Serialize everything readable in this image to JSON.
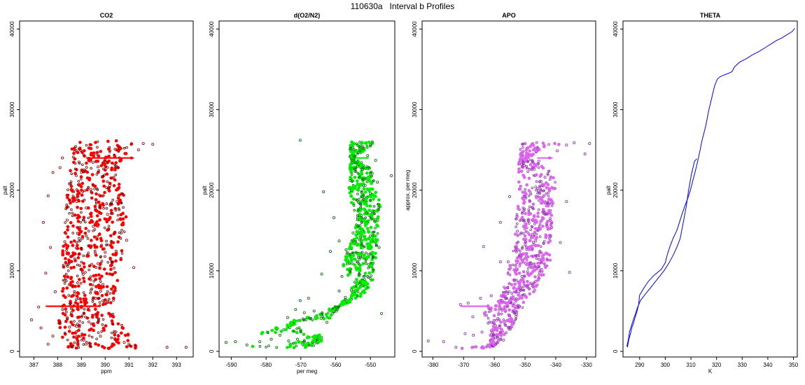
{
  "figure": {
    "title": "110630a   Interval b Profiles"
  },
  "chart_data": [
    {
      "type": "scatter",
      "title": "CO2",
      "xlabel": "ppm",
      "ylabel": "palt",
      "xlim": [
        386.4,
        393.7
      ],
      "ylim": [
        -700,
        41000
      ],
      "xticks": [
        387,
        388,
        389,
        390,
        391,
        392,
        393
      ],
      "yticks": [
        0,
        10000,
        20000,
        30000,
        40000
      ],
      "color": "#ff0000",
      "grid": false,
      "points": [
        [
          386.9,
          3900
        ],
        [
          387.3,
          2900
        ],
        [
          387.2,
          5500
        ],
        [
          388.2,
          5600
        ],
        [
          388.6,
          5500
        ],
        [
          389.0,
          5600
        ],
        [
          389.3,
          5500
        ],
        [
          388.5,
          3000
        ],
        [
          388.1,
          3600
        ],
        [
          389.1,
          1400
        ],
        [
          389.8,
          1900
        ],
        [
          390.4,
          1600
        ],
        [
          390.8,
          1100
        ],
        [
          391.0,
          900
        ],
        [
          391.3,
          600
        ],
        [
          392.6,
          500
        ],
        [
          393.4,
          500
        ],
        [
          388.4,
          4200
        ],
        [
          389.6,
          4600
        ],
        [
          390.1,
          6200
        ],
        [
          388.7,
          7100
        ],
        [
          389.4,
          7600
        ],
        [
          389.9,
          8300
        ],
        [
          388.3,
          8800
        ],
        [
          390.3,
          9500
        ],
        [
          389.0,
          10200
        ],
        [
          389.7,
          10900
        ],
        [
          388.6,
          11800
        ],
        [
          390.0,
          12300
        ],
        [
          389.3,
          13100
        ],
        [
          388.9,
          14000
        ],
        [
          390.4,
          14700
        ],
        [
          389.5,
          15500
        ],
        [
          388.4,
          16300
        ],
        [
          390.1,
          17000
        ],
        [
          389.2,
          17800
        ],
        [
          388.8,
          18600
        ],
        [
          389.9,
          19300
        ],
        [
          389.4,
          20100
        ],
        [
          388.5,
          20800
        ],
        [
          390.3,
          21500
        ],
        [
          389.0,
          22200
        ],
        [
          389.7,
          22900
        ],
        [
          390.0,
          23800
        ],
        [
          390.6,
          24000
        ],
        [
          391.1,
          24000
        ],
        [
          391.6,
          25800
        ],
        [
          391.4,
          25000
        ],
        [
          392.0,
          25700
        ],
        [
          390.6,
          25400
        ],
        [
          388.2,
          24000
        ],
        [
          387.8,
          22200
        ],
        [
          387.6,
          19300
        ],
        [
          387.4,
          16000
        ],
        [
          387.7,
          12900
        ],
        [
          387.5,
          9700
        ],
        [
          387.9,
          7400
        ],
        [
          391.2,
          10400
        ],
        [
          390.9,
          13800
        ],
        [
          390.5,
          18600
        ],
        [
          388.1,
          22800
        ],
        [
          388.9,
          23500
        ],
        [
          390.2,
          20600
        ],
        [
          388.3,
          13600
        ],
        [
          389.6,
          6600
        ],
        [
          388.8,
          3100
        ],
        [
          387.8,
          1900
        ],
        [
          387.6,
          900
        ],
        [
          389.2,
          900
        ]
      ],
      "band": [
        [
          388.5,
          0
        ],
        [
          388.0,
          3000
        ],
        [
          388.2,
          6000
        ],
        [
          388.2,
          12000
        ],
        [
          388.4,
          20000
        ],
        [
          388.6,
          24000
        ],
        [
          391.2,
          26000
        ],
        [
          390.6,
          23000
        ],
        [
          390.9,
          16000
        ],
        [
          390.6,
          10000
        ],
        [
          390.3,
          5000
        ],
        [
          391.3,
          800
        ]
      ]
    },
    {
      "type": "scatter",
      "title": "d(O2/N2)",
      "xlabel": "per meg",
      "ylabel": "palt",
      "xlim": [
        -593.5,
        -543
      ],
      "ylim": [
        -700,
        41000
      ],
      "xticks": [
        -590,
        -580,
        -570,
        -560,
        -550
      ],
      "yticks": [
        0,
        10000,
        20000,
        30000,
        40000
      ],
      "color": "#00ee00",
      "grid": false,
      "points": [
        [
          -591.5,
          1100
        ],
        [
          -588.8,
          1200
        ],
        [
          -585.5,
          800
        ],
        [
          -581.8,
          1200
        ],
        [
          -578.5,
          1500
        ],
        [
          -576.0,
          2000
        ],
        [
          -573.5,
          1300
        ],
        [
          -571.0,
          1500
        ],
        [
          -570.0,
          2400
        ],
        [
          -573.8,
          4200
        ],
        [
          -571.5,
          5200
        ],
        [
          -570.2,
          6300
        ],
        [
          -567.8,
          6600
        ],
        [
          -566.2,
          5000
        ],
        [
          -564.2,
          4100
        ],
        [
          -562.5,
          3600
        ],
        [
          -559.8,
          5000
        ],
        [
          -557.2,
          6700
        ],
        [
          -559.0,
          7500
        ],
        [
          -555.5,
          7600
        ],
        [
          -553.0,
          8300
        ],
        [
          -558.2,
          9300
        ],
        [
          -556.0,
          10000
        ],
        [
          -553.8,
          11100
        ],
        [
          -557.0,
          12600
        ],
        [
          -559.0,
          13700
        ],
        [
          -555.0,
          14700
        ],
        [
          -552.5,
          16000
        ],
        [
          -551.0,
          17200
        ],
        [
          -552.8,
          18300
        ],
        [
          -550.0,
          19600
        ],
        [
          -551.5,
          20600
        ],
        [
          -548.0,
          21000
        ],
        [
          -549.5,
          22100
        ],
        [
          -551.0,
          22900
        ],
        [
          -548.5,
          23700
        ],
        [
          -550.8,
          24300
        ],
        [
          -553.0,
          24900
        ],
        [
          -550.0,
          25600
        ],
        [
          -549.5,
          26000
        ],
        [
          -570.2,
          26200
        ],
        [
          -563.5,
          19800
        ],
        [
          -560.5,
          16600
        ],
        [
          -561.5,
          12400
        ],
        [
          -564.0,
          9600
        ],
        [
          -546.8,
          4700
        ],
        [
          -547.5,
          12900
        ],
        [
          -544.0,
          21800
        ],
        [
          -569.0,
          4800
        ]
      ],
      "band": [
        [
          -584,
          700
        ],
        [
          -575,
          700
        ],
        [
          -568,
          1500
        ],
        [
          -572,
          3800
        ],
        [
          -565,
          3900
        ],
        [
          -561,
          4000
        ],
        [
          -556,
          7800
        ],
        [
          -556,
          9000
        ],
        [
          -558,
          11000
        ],
        [
          -554,
          15000
        ],
        [
          -556,
          20000
        ],
        [
          -555,
          24000
        ],
        [
          -548,
          26000
        ],
        [
          -550,
          23000
        ],
        [
          -547,
          18000
        ],
        [
          -548,
          14000
        ],
        [
          -549,
          9000
        ],
        [
          -553,
          6500
        ],
        [
          -560,
          5500
        ],
        [
          -564,
          2000
        ],
        [
          -575,
          2000
        ],
        [
          -582,
          2200
        ]
      ]
    },
    {
      "type": "scatter",
      "title": "APO",
      "xlabel": "",
      "ylabel": "approx. per meg",
      "xlim": [
        -383.5,
        -327
      ],
      "ylim": [
        -700,
        41000
      ],
      "xticks": [
        -380,
        -370,
        -360,
        -350,
        -340,
        -330
      ],
      "yticks": [
        0,
        10000,
        20000,
        30000,
        40000
      ],
      "color": "#dd66ee",
      "grid": false,
      "points": [
        [
          -381.5,
          1300
        ],
        [
          -376.5,
          1200
        ],
        [
          -372.5,
          500
        ],
        [
          -369.5,
          2200
        ],
        [
          -366.8,
          2000
        ],
        [
          -364.0,
          2400
        ],
        [
          -362.0,
          3500
        ],
        [
          -367.0,
          4300
        ],
        [
          -371.0,
          5800
        ],
        [
          -368.5,
          6000
        ],
        [
          -364.5,
          6600
        ],
        [
          -361.0,
          6900
        ],
        [
          -357.5,
          6300
        ],
        [
          -355.0,
          4400
        ],
        [
          -353.2,
          5000
        ],
        [
          -356.0,
          7400
        ],
        [
          -353.5,
          8800
        ],
        [
          -351.0,
          9300
        ],
        [
          -355.5,
          11100
        ],
        [
          -353.0,
          12800
        ],
        [
          -349.8,
          13600
        ],
        [
          -352.5,
          14900
        ],
        [
          -350.3,
          16300
        ],
        [
          -347.5,
          17800
        ],
        [
          -350.0,
          19200
        ],
        [
          -346.5,
          20400
        ],
        [
          -343.5,
          21600
        ],
        [
          -347.0,
          22600
        ],
        [
          -345.5,
          23600
        ],
        [
          -342.0,
          24000
        ],
        [
          -339.5,
          24900
        ],
        [
          -336.5,
          25600
        ],
        [
          -334.0,
          25900
        ],
        [
          -329.0,
          25800
        ],
        [
          -330.5,
          24500
        ],
        [
          -363.5,
          13000
        ],
        [
          -358.0,
          11100
        ],
        [
          -355.0,
          19200
        ],
        [
          -336.5,
          18600
        ],
        [
          -335.5,
          9800
        ],
        [
          -338.5,
          13500
        ],
        [
          -346.5,
          8700
        ],
        [
          -358.0,
          16000
        ],
        [
          -357.0,
          1400
        ]
      ],
      "band": [
        [
          -371,
          500
        ],
        [
          -362,
          600
        ],
        [
          -361,
          3000
        ],
        [
          -364,
          5200
        ],
        [
          -358,
          6500
        ],
        [
          -357,
          8000
        ],
        [
          -354,
          12000
        ],
        [
          -353,
          16000
        ],
        [
          -352,
          20000
        ],
        [
          -349,
          24000
        ],
        [
          -338,
          25800
        ],
        [
          -340,
          22000
        ],
        [
          -341,
          16000
        ],
        [
          -342,
          11000
        ],
        [
          -346,
          8000
        ],
        [
          -350,
          6000
        ],
        [
          -353,
          3500
        ],
        [
          -360,
          500
        ]
      ]
    },
    {
      "type": "line",
      "title": "THETA",
      "xlabel": "K",
      "ylabel": "palt",
      "xlim": [
        283.5,
        351.5
      ],
      "ylim": [
        -700,
        41000
      ],
      "xticks": [
        290,
        300,
        310,
        320,
        330,
        340,
        350
      ],
      "yticks": [
        0,
        10000,
        20000,
        30000,
        40000
      ],
      "color": "#0000ff",
      "grid": false,
      "series": [
        {
          "x": [
            285.2,
            285.8,
            286.5,
            287.0,
            287.6,
            288.2,
            289.0,
            289.6,
            290.0,
            291.5,
            293.2,
            295.5,
            298.5,
            300.0,
            300.8,
            301.8,
            303.0,
            304.5,
            305.5,
            306.5,
            307.6,
            308.8,
            309.8,
            310.6,
            311.4,
            312.2,
            312.9,
            313.6,
            314.2,
            315.0,
            315.8,
            316.4,
            317.0,
            317.8,
            318.5,
            319.3,
            320.3,
            321.5,
            323.0,
            324.6,
            326.0,
            327.0,
            329.0,
            331.5,
            334.0,
            336.5,
            339.0,
            341.5,
            343.5,
            345.5,
            347.5,
            349.5,
            350.5
          ],
          "y": [
            500,
            1500,
            2300,
            3000,
            3500,
            4200,
            5000,
            5800,
            7000,
            7800,
            8600,
            9400,
            10200,
            11000,
            12000,
            13000,
            14000,
            15000,
            16000,
            17000,
            18000,
            19000,
            20000,
            21000,
            22000,
            23000,
            24000,
            25000,
            26000,
            27000,
            28000,
            29000,
            30000,
            31000,
            32000,
            33000,
            33800,
            34100,
            34300,
            34500,
            34700,
            35300,
            35900,
            36300,
            36800,
            37200,
            37700,
            38200,
            38600,
            38900,
            39300,
            39700,
            40100
          ]
        },
        {
          "x": [
            285.0,
            285.6,
            286.1,
            286.8,
            287.5,
            288.3,
            289.1,
            290.3,
            292.2,
            294.5,
            297.0,
            299.5,
            301.5,
            303.2,
            304.6,
            305.8,
            307.0,
            308.2,
            309.1,
            310.2,
            311.4,
            312.3
          ],
          "y": [
            600,
            1500,
            2500,
            3200,
            3900,
            4600,
            5400,
            6300,
            7100,
            8000,
            9000,
            10000,
            11000,
            12000,
            13000,
            14000,
            16000,
            18000,
            20000,
            22000,
            23600,
            23900
          ]
        }
      ]
    }
  ]
}
